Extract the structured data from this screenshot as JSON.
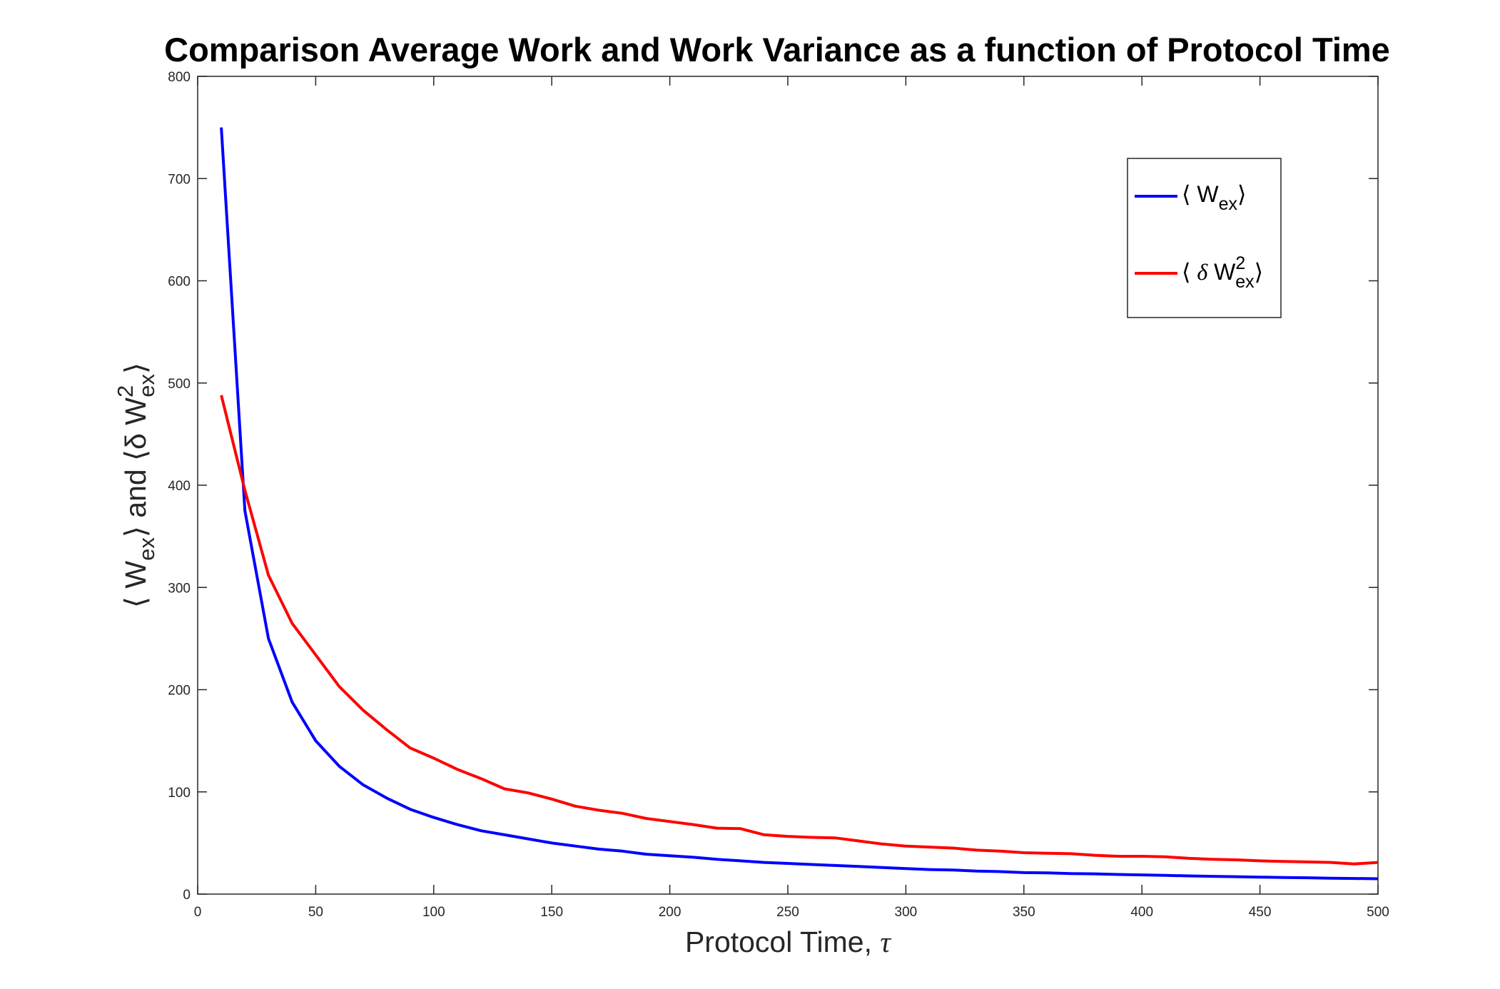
{
  "chart_data": {
    "type": "line",
    "title": "Comparison Average Work and Work Variance as a function of Protocol Time",
    "xlabel": {
      "text": "Protocol Time, ",
      "symbol": "τ"
    },
    "ylabel": {
      "p1": "⟨ W",
      "sub1": "ex",
      "p2": "⟩ and ⟨δ W",
      "sup2": "2",
      "sub2": "ex",
      "p3": "⟩"
    },
    "xlim": [
      0,
      500
    ],
    "ylim": [
      0,
      800
    ],
    "xticks": [
      0,
      50,
      100,
      150,
      200,
      250,
      300,
      350,
      400,
      450,
      500
    ],
    "yticks": [
      0,
      100,
      200,
      300,
      400,
      500,
      600,
      700,
      800
    ],
    "grid": false,
    "legend_position": "top-right",
    "x": [
      10,
      20,
      30,
      40,
      50,
      60,
      70,
      80,
      90,
      100,
      110,
      120,
      130,
      140,
      150,
      160,
      170,
      180,
      190,
      200,
      210,
      220,
      230,
      240,
      250,
      260,
      270,
      280,
      290,
      300,
      310,
      320,
      330,
      340,
      350,
      360,
      370,
      380,
      390,
      400,
      410,
      420,
      430,
      440,
      450,
      460,
      470,
      480,
      490,
      500
    ],
    "series": [
      {
        "name": {
          "open": "⟨ W",
          "sub": "ex",
          "close": "⟩"
        },
        "color": "#0000ff",
        "values": [
          750,
          375,
          250,
          188,
          150,
          125,
          107,
          94,
          83,
          75,
          68,
          62,
          58,
          54,
          50,
          47,
          44,
          42,
          39,
          37.5,
          36,
          34,
          32.5,
          31,
          30,
          29,
          28,
          27,
          26,
          25,
          24,
          23.5,
          22.5,
          22,
          21,
          20.8,
          20,
          19.8,
          19.2,
          18.8,
          18.3,
          17.8,
          17.4,
          17,
          16.6,
          16.3,
          16,
          15.6,
          15.3,
          15
        ]
      },
      {
        "name": {
          "open": "⟨ ",
          "delta": "δ",
          "mid": " W",
          "sup": "2",
          "sub": "ex",
          "close": "⟩"
        },
        "color": "#ff0000",
        "values": [
          488,
          395,
          312,
          265,
          234,
          203,
          180,
          161,
          143,
          133,
          122,
          113,
          103,
          99,
          93,
          86,
          82,
          79,
          74,
          71,
          68,
          64.5,
          64,
          58,
          56.5,
          55.5,
          55,
          52,
          49,
          47,
          46,
          45,
          43,
          42,
          40.5,
          40,
          39.5,
          38,
          37,
          37,
          36.5,
          35,
          34,
          33.5,
          32.5,
          32,
          31.5,
          31,
          29.5,
          31
        ]
      }
    ]
  },
  "colors": {
    "axes": "#262626",
    "background": "#ffffff"
  }
}
